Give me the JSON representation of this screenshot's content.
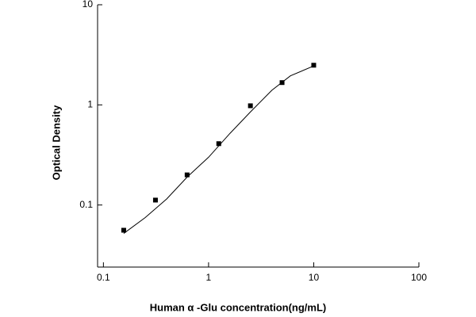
{
  "chart_data": {
    "type": "scatter",
    "x_label": "Human α -Glu concentration(ng/mL)",
    "y_label": "Optical Density",
    "xscale": "log",
    "yscale": "log",
    "xlim": [
      0.088,
      100
    ],
    "ylim": [
      0.024,
      10
    ],
    "xticks": [
      0.1,
      1,
      10,
      100
    ],
    "yticks": [
      0.1,
      1,
      10
    ],
    "series": [
      {
        "type": "scatter",
        "color": "#000000",
        "x": [
          0.156,
          0.3125,
          0.625,
          1.25,
          2.5,
          5,
          10
        ],
        "values": [
          0.056,
          0.112,
          0.2,
          0.41,
          0.98,
          1.67,
          2.49
        ]
      },
      {
        "type": "line",
        "color": "#000000",
        "x": [
          0.156,
          0.25,
          0.4,
          0.625,
          1.0,
          1.6,
          2.5,
          4,
          6,
          10
        ],
        "values": [
          0.052,
          0.075,
          0.115,
          0.19,
          0.3,
          0.52,
          0.85,
          1.4,
          1.95,
          2.45
        ]
      }
    ]
  }
}
